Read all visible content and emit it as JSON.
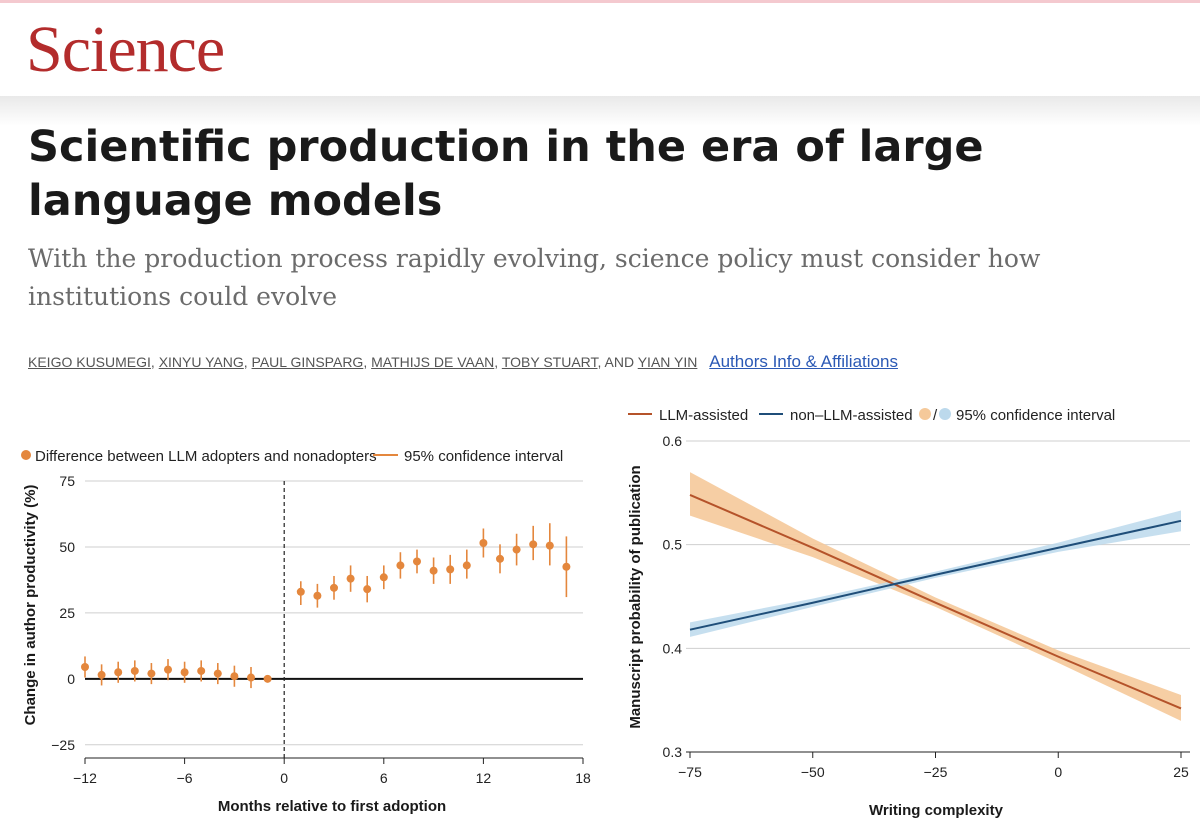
{
  "journal": "Science",
  "article": {
    "title": "Scientific production in the era of large language models",
    "subtitle": "With the production process rapidly evolving, science policy must consider how institutions could evolve",
    "authors": [
      "Keigo Kusumegi",
      "Xinyu Yang",
      "Paul Ginsparg",
      "Mathijs de Vaan",
      "Toby Stuart",
      "Yian Yin"
    ],
    "authors_joiner": ", AND ",
    "affiliations_link": "Authors Info & Affiliations"
  },
  "colors": {
    "brand": "#b32c2c",
    "orange": "#e4873d",
    "llm": "#b5532a",
    "non_llm": "#1f4e79",
    "ci_orange": "#f5c99a",
    "ci_blue": "#bcd9ec",
    "link": "#2b59b5"
  },
  "chart_data": [
    {
      "type": "scatter",
      "legend": {
        "points": "Difference between LLM adopters and nonadopters",
        "interval": "95% confidence interval"
      },
      "xlabel": "Months relative to first adoption",
      "ylabel": "Change in author productivity (%)",
      "xlim": [
        -12,
        18
      ],
      "ylim": [
        -30,
        75
      ],
      "xticks": [
        -12,
        -6,
        0,
        6,
        12,
        18
      ],
      "xtick_labels": [
        "−12",
        "−6",
        "0",
        "6",
        "12",
        "18"
      ],
      "yticks": [
        75,
        50,
        25,
        0,
        -25
      ],
      "ytick_labels": [
        "75",
        "50",
        "25",
        "0",
        "−25"
      ],
      "grid": true,
      "vline_x": 0,
      "points": [
        {
          "x": -12,
          "y": 4.5,
          "lo": 0.5,
          "hi": 8.5
        },
        {
          "x": -11,
          "y": 1.5,
          "lo": -2.5,
          "hi": 5.5
        },
        {
          "x": -10,
          "y": 2.5,
          "lo": -1.5,
          "hi": 6.5
        },
        {
          "x": -9,
          "y": 3.0,
          "lo": -1.0,
          "hi": 7.0
        },
        {
          "x": -8,
          "y": 2.0,
          "lo": -2.0,
          "hi": 6.0
        },
        {
          "x": -7,
          "y": 3.5,
          "lo": -0.5,
          "hi": 7.5
        },
        {
          "x": -6,
          "y": 2.5,
          "lo": -1.5,
          "hi": 6.5
        },
        {
          "x": -5,
          "y": 3.0,
          "lo": -1.0,
          "hi": 7.0
        },
        {
          "x": -4,
          "y": 2.0,
          "lo": -2.0,
          "hi": 6.0
        },
        {
          "x": -3,
          "y": 1.0,
          "lo": -3.0,
          "hi": 5.0
        },
        {
          "x": -2,
          "y": 0.5,
          "lo": -3.5,
          "hi": 4.5
        },
        {
          "x": -1,
          "y": 0.0,
          "lo": 0.0,
          "hi": 0.0
        },
        {
          "x": 1,
          "y": 33,
          "lo": 28,
          "hi": 37
        },
        {
          "x": 2,
          "y": 31.5,
          "lo": 27,
          "hi": 36
        },
        {
          "x": 3,
          "y": 34.5,
          "lo": 30,
          "hi": 39
        },
        {
          "x": 4,
          "y": 38,
          "lo": 33,
          "hi": 43
        },
        {
          "x": 5,
          "y": 34,
          "lo": 29,
          "hi": 39
        },
        {
          "x": 6,
          "y": 38.5,
          "lo": 34,
          "hi": 43
        },
        {
          "x": 7,
          "y": 43,
          "lo": 38,
          "hi": 48
        },
        {
          "x": 8,
          "y": 44.5,
          "lo": 40,
          "hi": 49
        },
        {
          "x": 9,
          "y": 41,
          "lo": 36,
          "hi": 46
        },
        {
          "x": 10,
          "y": 41.5,
          "lo": 36,
          "hi": 47
        },
        {
          "x": 11,
          "y": 43,
          "lo": 38,
          "hi": 49
        },
        {
          "x": 12,
          "y": 51.5,
          "lo": 46,
          "hi": 57
        },
        {
          "x": 13,
          "y": 45.5,
          "lo": 40,
          "hi": 51
        },
        {
          "x": 14,
          "y": 49,
          "lo": 43,
          "hi": 55
        },
        {
          "x": 15,
          "y": 51,
          "lo": 45,
          "hi": 58
        },
        {
          "x": 16,
          "y": 50.5,
          "lo": 43,
          "hi": 59
        },
        {
          "x": 17,
          "y": 42.5,
          "lo": 31,
          "hi": 54
        }
      ]
    },
    {
      "type": "line",
      "legend": {
        "llm": "LLM-assisted",
        "non_llm": "non–LLM-assisted",
        "ci": "95% confidence interval",
        "ci_sep": "/"
      },
      "xlabel": "Writing complexity",
      "ylabel": "Manuscript probability of publication",
      "xlim": [
        -75,
        25
      ],
      "ylim": [
        0.3,
        0.6
      ],
      "xticks": [
        -75,
        -50,
        -25,
        0,
        25
      ],
      "xtick_labels": [
        "−75",
        "−50",
        "−25",
        "0",
        "25"
      ],
      "yticks": [
        0.6,
        0.5,
        0.4,
        0.3
      ],
      "ytick_labels": [
        "0.6",
        "0.5",
        "0.4",
        "0.3"
      ],
      "grid": true,
      "series": [
        {
          "name": "LLM-assisted",
          "color": "#b5532a",
          "band_color": "#f5c99a",
          "x": [
            -75,
            -50,
            -25,
            0,
            25
          ],
          "y": [
            0.548,
            0.497,
            0.444,
            0.392,
            0.342
          ],
          "lo": [
            0.528,
            0.488,
            0.44,
            0.386,
            0.33
          ],
          "hi": [
            0.57,
            0.506,
            0.449,
            0.398,
            0.355
          ]
        },
        {
          "name": "non–LLM-assisted",
          "color": "#1f4e79",
          "band_color": "#bcd9ec",
          "x": [
            -75,
            -50,
            -25,
            0,
            25
          ],
          "y": [
            0.418,
            0.444,
            0.471,
            0.497,
            0.523
          ],
          "lo": [
            0.411,
            0.44,
            0.468,
            0.493,
            0.513
          ],
          "hi": [
            0.425,
            0.448,
            0.474,
            0.502,
            0.533
          ]
        }
      ]
    }
  ]
}
